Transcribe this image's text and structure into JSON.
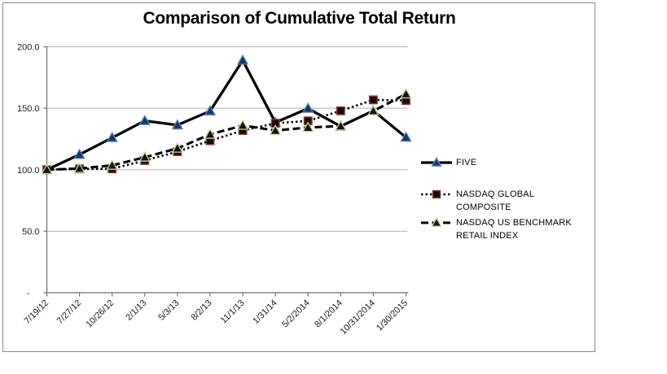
{
  "window": {
    "background": "#ffffff",
    "frame_border_color": "#8a8a8a"
  },
  "chart_data": {
    "type": "line",
    "title": "Comparison of Cumulative Total Return",
    "categories": [
      "7/19/12",
      "7/27/12",
      "10/26/12",
      "2/1/13",
      "5/3/13",
      "8/2/13",
      "11/1/13",
      "1/31/14",
      "5/2/2014",
      "8/1/2014",
      "10/31/2014",
      "1/30/2015"
    ],
    "series": [
      {
        "name": "FIVE",
        "values": [
          100.0,
          112.3,
          126.0,
          139.8,
          136.3,
          147.7,
          188.9,
          138.4,
          149.8,
          135.3,
          148.0,
          126.3
        ],
        "line": {
          "color": "#000000",
          "style": "solid",
          "width": 3.3
        },
        "marker": {
          "shape": "triangle",
          "fill": "#17375d",
          "stroke": "#5b84c4"
        }
      },
      {
        "name": "NASDAQ GLOBAL COMPOSITE",
        "values": [
          100.0,
          100.7,
          100.7,
          107.5,
          114.7,
          123.6,
          131.9,
          137.8,
          139.7,
          147.9,
          156.8,
          156.3
        ],
        "line": {
          "color": "#000000",
          "style": "dotted",
          "width": 2.6
        },
        "marker": {
          "shape": "square",
          "fill": "#120b0b",
          "stroke": "#943634"
        }
      },
      {
        "name": "NASDAQ US BENCHMARK RETAIL INDEX",
        "values": [
          100.0,
          101.0,
          103.5,
          110.1,
          117.4,
          128.7,
          136.0,
          131.9,
          134.3,
          135.5,
          147.8,
          161.5
        ],
        "line": {
          "color": "#000000",
          "style": "dashed",
          "width": 3.1
        },
        "marker": {
          "shape": "triangle",
          "fill": "#141414",
          "stroke": "#c3d69b"
        }
      }
    ],
    "y_ticks": [
      {
        "value": 0,
        "label": "-"
      },
      {
        "value": 50,
        "label": "50.0"
      },
      {
        "value": 100,
        "label": "100.0"
      },
      {
        "value": 150,
        "label": "150.0"
      },
      {
        "value": 200,
        "label": "200.0"
      }
    ],
    "ylim": [
      0,
      200
    ],
    "grid": true,
    "legend_position": "right",
    "axis_color": "#6e6e6e",
    "grid_color": "#b0b0b0",
    "tick_label_color": "#1a1a1a"
  }
}
